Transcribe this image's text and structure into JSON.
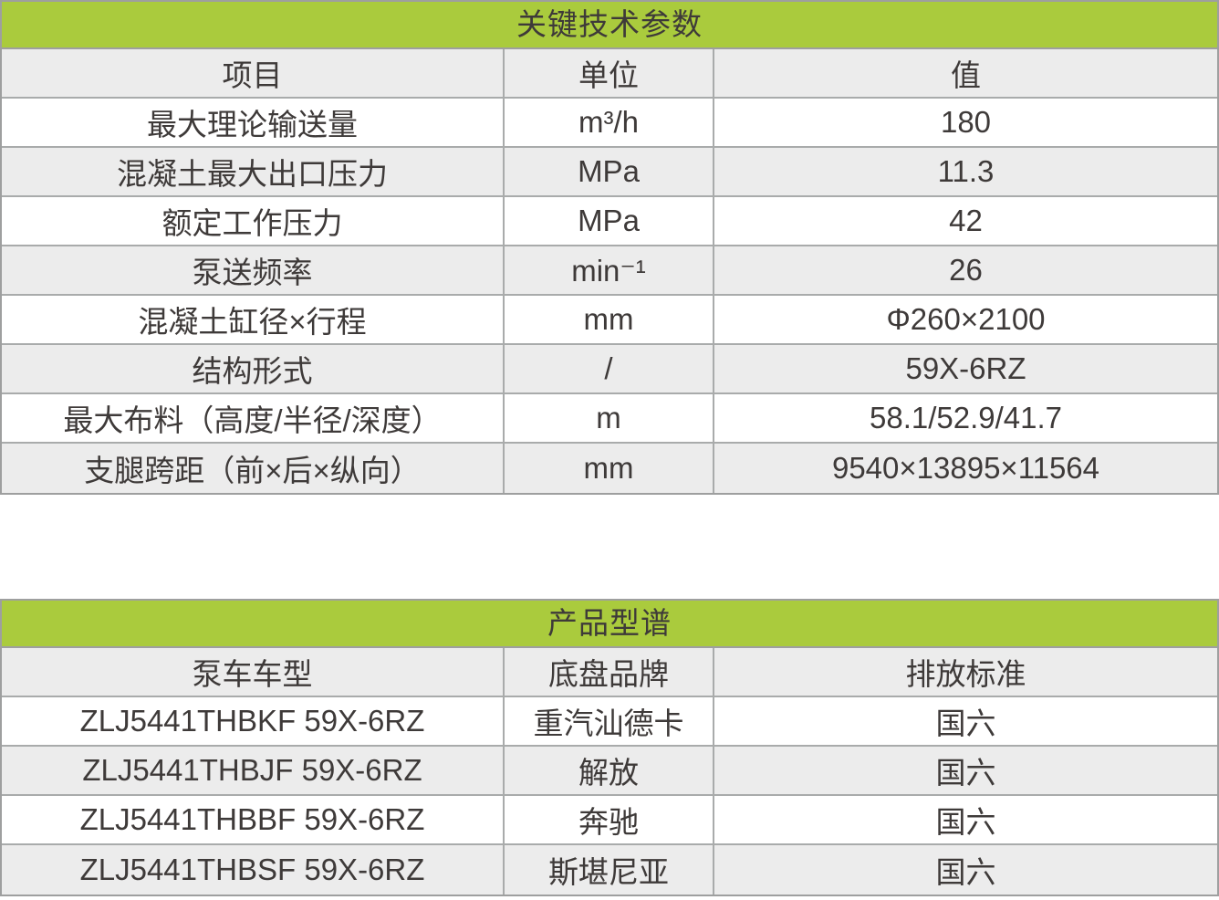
{
  "colors": {
    "header_green": "#aacb3d",
    "row_gray": "#ececec",
    "row_white": "#ffffff",
    "border_gray": "#a9abab",
    "text_dark": "#3e3a39"
  },
  "tables": [
    {
      "title": "关键技术参数",
      "columns": [
        "项目",
        "单位",
        "值"
      ],
      "rows": [
        [
          "最大理论输送量",
          "m³/h",
          "180"
        ],
        [
          "混凝土最大出口压力",
          "MPa",
          "11.3"
        ],
        [
          "额定工作压力",
          "MPa",
          "42"
        ],
        [
          "泵送频率",
          "min⁻¹",
          "26"
        ],
        [
          "混凝土缸径×行程",
          "mm",
          "Φ260×2100"
        ],
        [
          "结构形式",
          "/",
          "59X-6RZ"
        ],
        [
          "最大布料（高度/半径/深度）",
          "m",
          "58.1/52.9/41.7"
        ],
        [
          "支腿跨距（前×后×纵向）",
          "mm",
          "9540×13895×11564"
        ]
      ]
    },
    {
      "title": "产品型谱",
      "columns": [
        "泵车车型",
        "底盘品牌",
        "排放标准"
      ],
      "rows": [
        [
          "ZLJ5441THBKF 59X-6RZ",
          "重汽汕德卡",
          "国六"
        ],
        [
          "ZLJ5441THBJF 59X-6RZ",
          "解放",
          "国六"
        ],
        [
          "ZLJ5441THBBF 59X-6RZ",
          "奔驰",
          "国六"
        ],
        [
          "ZLJ5441THBSF 59X-6RZ",
          "斯堪尼亚",
          "国六"
        ]
      ]
    }
  ]
}
